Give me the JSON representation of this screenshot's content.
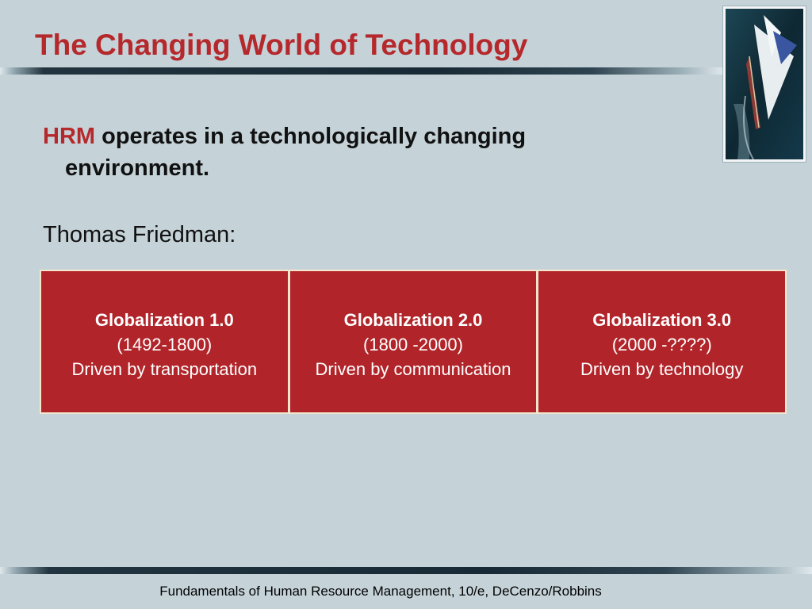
{
  "slide": {
    "title": "The Changing World of Technology",
    "bullet": {
      "highlight": "HRM",
      "text_line1": "operates in a technologically changing",
      "text_line2": "environment."
    },
    "subheading": "Thomas Friedman:",
    "table": [
      {
        "heading": "Globalization 1.0",
        "period": "(1492-1800)",
        "driver": "Driven by transportation"
      },
      {
        "heading": "Globalization 2.0",
        "period": "(1800 -2000)",
        "driver": "Driven by communication"
      },
      {
        "heading": "Globalization 3.0",
        "period": "(2000 -????)",
        "driver": "Driven by technology"
      }
    ],
    "footer": "Fundamentals of Human Resource Management, 10/e, DeCenzo/Robbins"
  },
  "colors": {
    "background": "#c5d3d9",
    "accent_red": "#b5282b",
    "table_fill": "#b1252a",
    "table_border": "#f2e6cc"
  },
  "image": {
    "icon": "sailboat-photo"
  }
}
